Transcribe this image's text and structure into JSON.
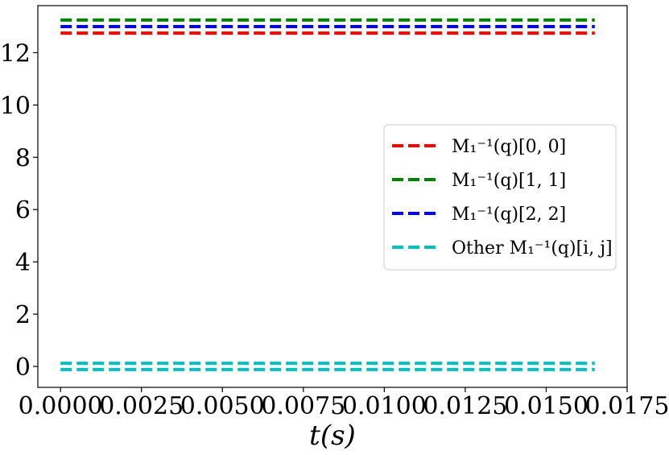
{
  "chart_data": {
    "type": "line",
    "title": "",
    "xlabel": "t(s)",
    "ylabel": "",
    "xlim": [
      -0.0007,
      0.0175
    ],
    "ylim": [
      -0.8,
      13.8
    ],
    "xticks": [
      "0.0000",
      "0.0025",
      "0.0050",
      "0.0075",
      "0.0100",
      "0.0125",
      "0.0150",
      "0.0175"
    ],
    "xtick_values": [
      0.0,
      0.0025,
      0.005,
      0.0075,
      0.01,
      0.0125,
      0.015,
      0.0175
    ],
    "yticks": [
      "0",
      "2",
      "4",
      "6",
      "8",
      "10",
      "12"
    ],
    "ytick_values": [
      0,
      2,
      4,
      6,
      8,
      10,
      12
    ],
    "grid": false,
    "legend_position": "center-right",
    "x": [
      0.0,
      0.0165
    ],
    "series": [
      {
        "name": "M_1^{-1}(q)[0,0]",
        "legend_label": "M₁⁻¹(q)[0, 0]",
        "color": "#ff0000",
        "style": "dashed",
        "values": [
          12.75,
          12.75
        ]
      },
      {
        "name": "M_1^{-1}(q)[1,1]",
        "legend_label": "M₁⁻¹(q)[1, 1]",
        "color": "#008000",
        "style": "dashed",
        "values": [
          13.25,
          13.25
        ]
      },
      {
        "name": "M_1^{-1}(q)[2,2]",
        "legend_label": "M₁⁻¹(q)[2, 2]",
        "color": "#0000ff",
        "style": "dashed",
        "values": [
          13.0,
          13.0
        ]
      },
      {
        "name": "Other M_1^{-1}(q)[i,j]",
        "legend_label": "Other M₁⁻¹(q)[i, j]",
        "color": "#00bfbf",
        "style": "dashed",
        "values": [
          0.12,
          0.12
        ],
        "legend": true
      },
      {
        "name": "",
        "legend_label": "",
        "color": "#00bfbf",
        "style": "dashed",
        "values": [
          -0.12,
          -0.12
        ],
        "legend": false
      }
    ]
  }
}
